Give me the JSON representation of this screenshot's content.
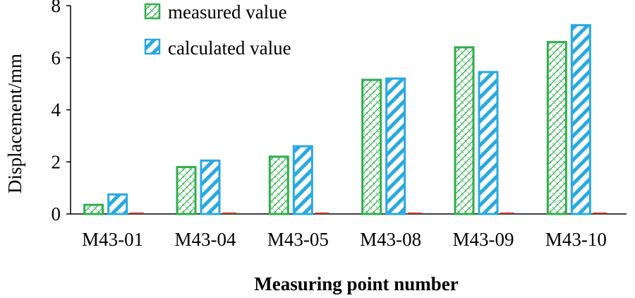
{
  "chart_data": {
    "type": "bar",
    "categories": [
      "M43-01",
      "M43-04",
      "M43-05",
      "M43-08",
      "M43-09",
      "M43-10"
    ],
    "series": [
      {
        "name": "measured value",
        "values": [
          0.35,
          1.8,
          2.2,
          5.15,
          6.4,
          6.6
        ],
        "color": "#2fae4b"
      },
      {
        "name": "calculated value",
        "values": [
          0.75,
          2.05,
          2.6,
          5.2,
          5.45,
          7.25
        ],
        "color": "#29a9e0"
      }
    ],
    "xlabel": "Measuring point number",
    "ylabel": "Displacement/mm",
    "ylim": [
      0,
      8
    ],
    "yticks": [
      0,
      2,
      4,
      6,
      8
    ],
    "grid": false,
    "legend": "top-center"
  }
}
